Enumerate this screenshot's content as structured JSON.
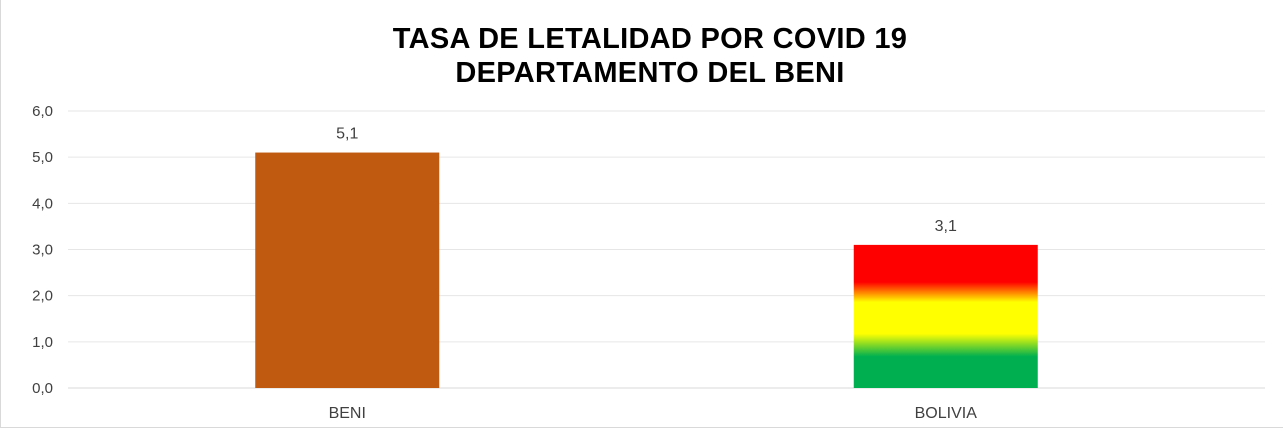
{
  "chart_data": {
    "type": "bar",
    "title_line1": "TASA DE LETALIDAD POR COVID 19",
    "title_line2": "DEPARTAMENTO DEL BENI",
    "categories": [
      "BENI",
      "BOLIVIA"
    ],
    "values": [
      5.1,
      3.1
    ],
    "data_labels": [
      "5,1",
      "3,1"
    ],
    "ylim": [
      0,
      6
    ],
    "yticks": [
      0,
      1,
      2,
      3,
      4,
      5,
      6
    ],
    "ytick_labels": [
      "0,0",
      "1,0",
      "2,0",
      "3,0",
      "4,0",
      "5,0",
      "6,0"
    ],
    "grid": true,
    "legend": "none",
    "colors": {
      "beni": "#c05a11",
      "bolivia_flag": [
        "#ff0000",
        "#ffff00",
        "#00b050"
      ],
      "grid": "#e6e6e6",
      "text": "#404040"
    }
  }
}
